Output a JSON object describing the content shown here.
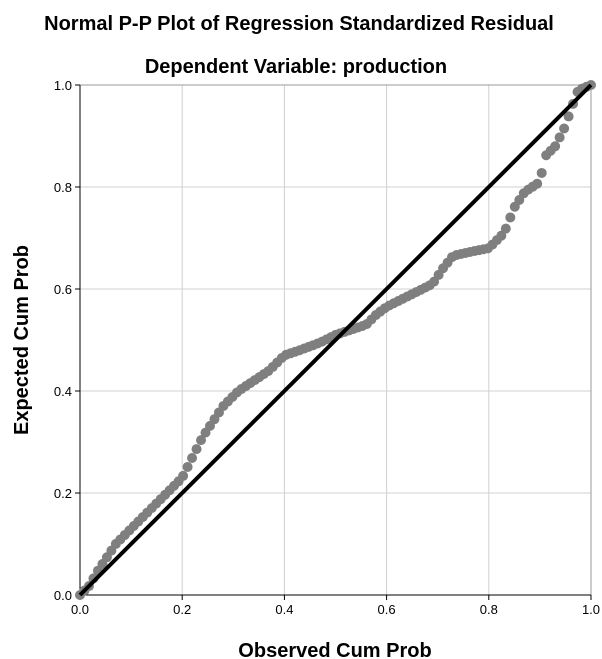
{
  "chart_data": {
    "type": "scatter",
    "title": "Normal P-P Plot of Regression Standardized Residual",
    "subtitle": "Dependent Variable: production",
    "xlabel": "Observed Cum Prob",
    "ylabel": "Expected Cum Prob",
    "xlim": [
      0.0,
      1.0
    ],
    "ylim": [
      0.0,
      1.0
    ],
    "xticks": [
      "0.0",
      "0.2",
      "0.4",
      "0.6",
      "0.8",
      "1.0"
    ],
    "yticks": [
      "0.0",
      "0.2",
      "0.4",
      "0.6",
      "0.8",
      "1.0"
    ],
    "grid": true,
    "reference_line": [
      [
        0.0,
        0.0
      ],
      [
        1.0,
        1.0
      ]
    ],
    "colors": {
      "points": "#7f7f7f",
      "reference_line": "#000000",
      "grid": "#d0d0d0"
    },
    "curve": [
      [
        0.0,
        0.0
      ],
      [
        0.01,
        0.01
      ],
      [
        0.02,
        0.02
      ],
      [
        0.03,
        0.04
      ],
      [
        0.05,
        0.07
      ],
      [
        0.07,
        0.1
      ],
      [
        0.09,
        0.12
      ],
      [
        0.12,
        0.15
      ],
      [
        0.15,
        0.18
      ],
      [
        0.18,
        0.21
      ],
      [
        0.2,
        0.23
      ],
      [
        0.22,
        0.27
      ],
      [
        0.24,
        0.31
      ],
      [
        0.26,
        0.34
      ],
      [
        0.28,
        0.37
      ],
      [
        0.31,
        0.4
      ],
      [
        0.34,
        0.42
      ],
      [
        0.37,
        0.44
      ],
      [
        0.4,
        0.47
      ],
      [
        0.43,
        0.48
      ],
      [
        0.47,
        0.495
      ],
      [
        0.5,
        0.51
      ],
      [
        0.53,
        0.52
      ],
      [
        0.56,
        0.53
      ],
      [
        0.58,
        0.55
      ],
      [
        0.6,
        0.565
      ],
      [
        0.63,
        0.58
      ],
      [
        0.66,
        0.595
      ],
      [
        0.69,
        0.61
      ],
      [
        0.71,
        0.64
      ],
      [
        0.73,
        0.665
      ],
      [
        0.76,
        0.672
      ],
      [
        0.8,
        0.68
      ],
      [
        0.83,
        0.71
      ],
      [
        0.85,
        0.76
      ],
      [
        0.87,
        0.79
      ],
      [
        0.9,
        0.81
      ],
      [
        0.91,
        0.86
      ],
      [
        0.93,
        0.88
      ],
      [
        0.95,
        0.92
      ],
      [
        0.96,
        0.95
      ],
      [
        0.975,
        0.99
      ],
      [
        1.0,
        1.0
      ]
    ],
    "n_points": 115
  }
}
